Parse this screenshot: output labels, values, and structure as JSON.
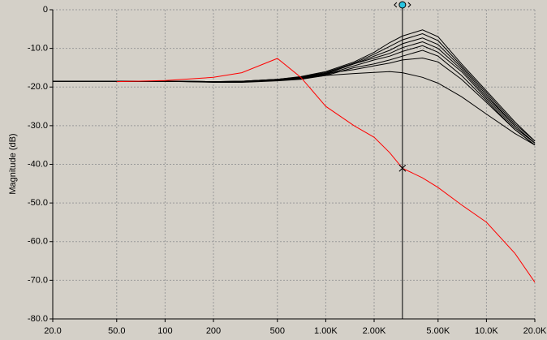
{
  "chart_data": {
    "type": "line",
    "ylabel": "Magnitude  (dB)",
    "log_x": true,
    "grid": true,
    "x": [
      20,
      50,
      100,
      200,
      300,
      500,
      700,
      1000,
      1500,
      2000,
      2500,
      3000,
      4000,
      5000,
      7000,
      10000,
      15000,
      20000
    ],
    "series": [
      {
        "color": "#000000",
        "values": [
          -18.5,
          -18.5,
          -18.5,
          -18.6,
          -18.5,
          -18,
          -17.3,
          -16,
          -13.5,
          -11,
          -8.5,
          -6.8,
          -5.2,
          -7,
          -14,
          -21,
          -29,
          -34
        ]
      },
      {
        "color": "#000000",
        "values": [
          -18.5,
          -18.5,
          -18.5,
          -18.6,
          -18.5,
          -18,
          -17.4,
          -16.2,
          -13.8,
          -11.5,
          -9.5,
          -7.8,
          -6.2,
          -8,
          -14.5,
          -21.5,
          -29.5,
          -34
        ]
      },
      {
        "color": "#000000",
        "values": [
          -18.5,
          -18.5,
          -18.5,
          -18.6,
          -18.5,
          -18,
          -17.5,
          -16.4,
          -14,
          -12,
          -10.5,
          -8.8,
          -7.3,
          -9,
          -15,
          -22,
          -30,
          -34.5
        ]
      },
      {
        "color": "#000000",
        "values": [
          -18.5,
          -18.5,
          -18.5,
          -18.6,
          -18.6,
          -18.1,
          -17.6,
          -16.6,
          -14,
          -12.5,
          -11.3,
          -9.8,
          -8.3,
          -10,
          -15.5,
          -22.5,
          -30,
          -34.5
        ]
      },
      {
        "color": "#000000",
        "values": [
          -18.5,
          -18.5,
          -18.5,
          -18.6,
          -18.6,
          -18.1,
          -17.7,
          -16.8,
          -14.5,
          -13,
          -12,
          -10.8,
          -9.3,
          -11,
          -16,
          -23,
          -30.5,
          -34.5
        ]
      },
      {
        "color": "#000000",
        "values": [
          -18.5,
          -18.5,
          -18.5,
          -18.6,
          -18.6,
          -18.2,
          -17.8,
          -17,
          -15,
          -14,
          -13,
          -12,
          -10.5,
          -12,
          -17,
          -23.5,
          -31,
          -35
        ]
      },
      {
        "color": "#000000",
        "values": [
          -18.5,
          -18.5,
          -18.5,
          -18.7,
          -18.7,
          -18.3,
          -17.9,
          -16.5,
          -15.5,
          -14.5,
          -13.8,
          -13,
          -12.5,
          -13.5,
          -18,
          -24,
          -31,
          -35
        ]
      },
      {
        "color": "#000000",
        "values": [
          -18.5,
          -18.5,
          -18.5,
          -18.8,
          -18.8,
          -18.4,
          -18,
          -17,
          -16.5,
          -16.2,
          -16,
          -16.3,
          -17.5,
          -19,
          -22.5,
          -27,
          -32,
          -35
        ]
      },
      {
        "color": "#ff0000",
        "values": [
          null,
          -18.6,
          -18.3,
          -17.5,
          -16.3,
          -12.6,
          -17.5,
          -25,
          -30,
          -33,
          -37,
          -41,
          -43.5,
          -46,
          -50.5,
          -55,
          -63,
          -70.5
        ]
      }
    ],
    "cursor": {
      "x": 3000,
      "y": -41
    },
    "xlim": [
      20,
      20000
    ],
    "xticks": [
      {
        "value": 20,
        "label": "20.0"
      },
      {
        "value": 50,
        "label": "50.0"
      },
      100,
      200,
      500,
      {
        "value": 1000,
        "label": "1.00K"
      },
      {
        "value": 2000,
        "label": "2.00K"
      },
      {
        "value": 5000,
        "label": "5.00K"
      },
      {
        "value": 10000,
        "label": "10.0K"
      },
      {
        "value": 20000,
        "label": "20.0K"
      }
    ],
    "ylim": [
      -80,
      0
    ],
    "yticks": [
      0,
      {
        "value": -10,
        "label": "-10.0"
      },
      {
        "value": -20,
        "label": "-20.0"
      },
      {
        "value": -30,
        "label": "-30.0"
      },
      {
        "value": -40,
        "label": "-40.0"
      },
      {
        "value": -50,
        "label": "-50.0"
      },
      {
        "value": -60,
        "label": "-60.0"
      },
      {
        "value": -70,
        "label": "-70.0"
      },
      {
        "value": -80,
        "label": "-80.0"
      }
    ]
  }
}
